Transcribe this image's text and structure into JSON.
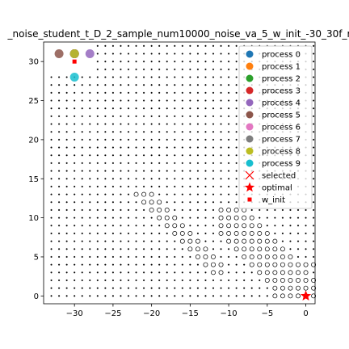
{
  "chart_data": {
    "type": "scatter",
    "title": "_noise_student_t_D_2_sample_num10000_noise_va_5_w_init_-30_30f_r",
    "xlabel": "",
    "ylabel": "",
    "xlim": [
      -34,
      1.2
    ],
    "ylim": [
      -1,
      32.5
    ],
    "x_ticks": [
      -30,
      -25,
      -20,
      -15,
      -10,
      -5,
      0
    ],
    "x_tick_labels": [
      "−30",
      "−25",
      "−20",
      "−15",
      "−10",
      "−5",
      "0"
    ],
    "y_ticks": [
      0,
      5,
      10,
      15,
      20,
      25,
      30
    ],
    "y_tick_labels": [
      "0",
      "5",
      "10",
      "15",
      "20",
      "25",
      "30"
    ],
    "grid": false,
    "legend_position": "top-right",
    "background_markers": "grid of small filled and open dots",
    "series": [
      {
        "name": "process 0",
        "color": "#1f77b4",
        "points": [
          [
            -30,
            31
          ]
        ]
      },
      {
        "name": "process 1",
        "color": "#ff7f0e",
        "points": [
          [
            -30,
            31
          ]
        ]
      },
      {
        "name": "process 2",
        "color": "#2ca02c",
        "points": [
          [
            -30,
            31
          ]
        ]
      },
      {
        "name": "process 3",
        "color": "#d62728",
        "points": [
          [
            -30,
            31
          ]
        ]
      },
      {
        "name": "process 4",
        "color": "#9467bd",
        "points": [
          [
            -28,
            31
          ]
        ]
      },
      {
        "name": "process 5",
        "color": "#8c564b",
        "points": [
          [
            -32,
            31
          ]
        ]
      },
      {
        "name": "process 6",
        "color": "#e377c2",
        "points": [
          [
            -30,
            31
          ]
        ]
      },
      {
        "name": "process 7",
        "color": "#7f7f7f",
        "points": [
          [
            -30,
            31
          ]
        ]
      },
      {
        "name": "process 8",
        "color": "#bcbd22",
        "points": [
          [
            -30,
            31
          ]
        ]
      },
      {
        "name": "process 9",
        "color": "#17becf",
        "points": [
          [
            -30,
            28
          ]
        ]
      }
    ],
    "selected": {
      "name": "selected",
      "color": "#ff0000",
      "points": []
    },
    "optimal": {
      "name": "optimal",
      "color": "#ff0000",
      "points": [
        [
          0,
          0
        ]
      ]
    },
    "w_init": {
      "name": "w_init",
      "color": "#ff0000",
      "points": [
        [
          -30,
          30
        ]
      ]
    }
  }
}
